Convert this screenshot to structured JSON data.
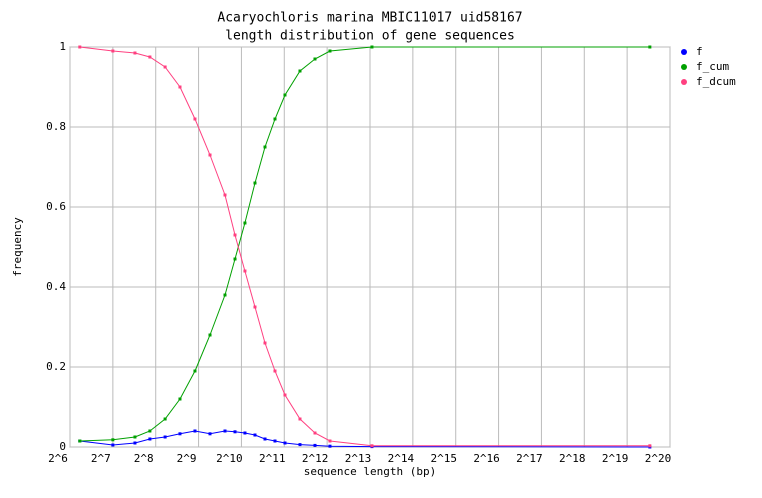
{
  "chart_data": {
    "type": "line",
    "title": "Acaryochloris marina MBIC11017 uid58167",
    "subtitle": "length distribution of gene sequences",
    "x_label": "sequence length (bp)",
    "y_label": "frequency",
    "x": [
      75,
      128,
      183,
      233,
      298,
      379,
      483,
      616,
      785,
      923,
      1084,
      1275,
      1499,
      1762,
      2071,
      2640,
      3365,
      4288,
      8455,
      757000
    ],
    "series": [
      {
        "name": "f",
        "color": "#0000ff",
        "values": [
          0.015,
          0.005,
          0.01,
          0.02,
          0.025,
          0.033,
          0.04,
          0.033,
          0.04,
          0.038,
          0.035,
          0.03,
          0.02,
          0.015,
          0.01,
          0.006,
          0.004,
          0.002,
          0.001,
          0
        ]
      },
      {
        "name": "f_cum",
        "color": "#00a000",
        "values": [
          0.015,
          0.018,
          0.025,
          0.04,
          0.07,
          0.12,
          0.19,
          0.28,
          0.38,
          0.47,
          0.56,
          0.66,
          0.75,
          0.82,
          0.88,
          0.94,
          0.97,
          0.99,
          1,
          1
        ]
      },
      {
        "name": "f_dcum",
        "color": "#ff4080",
        "values": [
          1,
          0.99,
          0.985,
          0.975,
          0.95,
          0.9,
          0.82,
          0.73,
          0.63,
          0.53,
          0.44,
          0.35,
          0.26,
          0.19,
          0.13,
          0.07,
          0.035,
          0.015,
          0.003,
          0.003
        ]
      }
    ],
    "x_log": true,
    "xlim": [
      64,
      1048576
    ],
    "xticks": [
      {
        "value": 64,
        "label": "2^6"
      },
      {
        "value": 128,
        "label": "2^7"
      },
      {
        "value": 256,
        "label": "2^8"
      },
      {
        "value": 512,
        "label": "2^9"
      },
      {
        "value": 1024,
        "label": "2^10"
      },
      {
        "value": 2048,
        "label": "2^11"
      },
      {
        "value": 4096,
        "label": "2^12"
      },
      {
        "value": 8192,
        "label": "2^13"
      },
      {
        "value": 16384,
        "label": "2^14"
      },
      {
        "value": 32768,
        "label": "2^15"
      },
      {
        "value": 65536,
        "label": "2^16"
      },
      {
        "value": 131072,
        "label": "2^17"
      },
      {
        "value": 262144,
        "label": "2^18"
      },
      {
        "value": 524288,
        "label": "2^19"
      },
      {
        "value": 1048576,
        "label": "2^20"
      }
    ],
    "ylim": [
      0,
      1
    ],
    "yticks": [
      0,
      0.2,
      0.4,
      0.6,
      0.8,
      1
    ],
    "grid": true,
    "legend": "right"
  }
}
